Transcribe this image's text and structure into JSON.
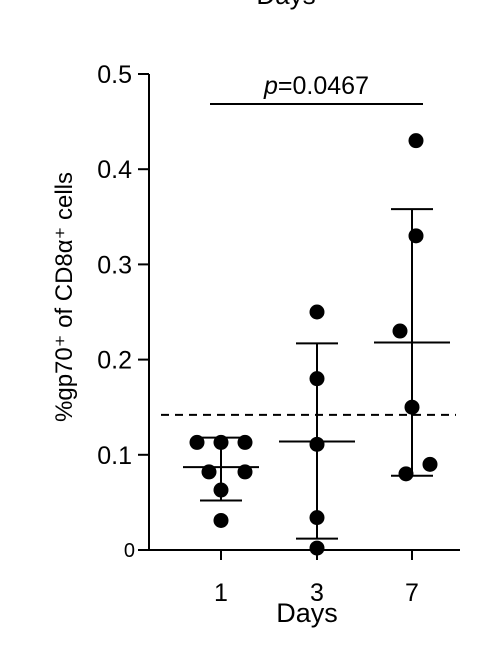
{
  "chart_data": {
    "type": "scatter",
    "top_cropped_text": "Days",
    "xlabel": "Days",
    "ylabel": "%gp70⁺ of CD8α⁺ cells",
    "categories": [
      "1",
      "3",
      "7"
    ],
    "ylim": [
      0,
      0.5
    ],
    "yticks": [
      "0",
      "0.1",
      "0.2",
      "0.3",
      "0.4",
      "0.5"
    ],
    "grid": false,
    "series": [
      {
        "category": "1",
        "points": [
          0.113,
          0.113,
          0.113,
          0.082,
          0.082,
          0.031,
          0.063
        ],
        "mean": 0.087,
        "sd_upper": 0.118,
        "sd_lower": 0.052
      },
      {
        "category": "3",
        "points": [
          0.25,
          0.18,
          0.111,
          0.034,
          0.002
        ],
        "mean": 0.114,
        "sd_upper": 0.217,
        "sd_lower": 0.012
      },
      {
        "category": "7",
        "points": [
          0.43,
          0.33,
          0.23,
          0.15,
          0.09,
          0.08
        ],
        "mean": 0.218,
        "sd_upper": 0.358,
        "sd_lower": 0.078
      }
    ],
    "reference_line": {
      "y": 0.142,
      "style": "dashed"
    },
    "annotation": {
      "text": "p=0.0467",
      "from": "1",
      "to": "7"
    },
    "colors": {
      "marker": "#000000",
      "lines": "#000000"
    }
  }
}
